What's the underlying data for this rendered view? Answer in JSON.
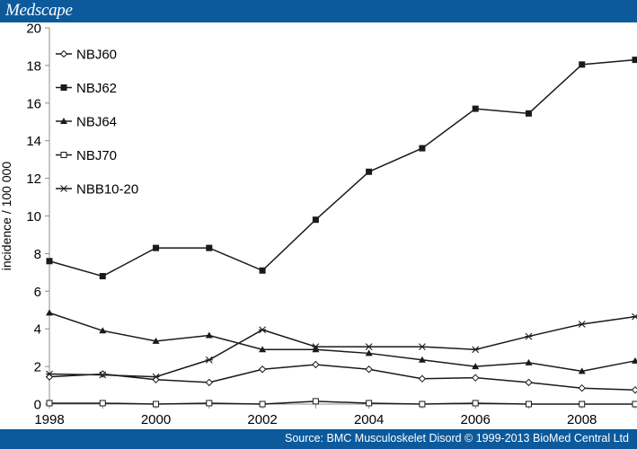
{
  "header": {
    "brand": "Medscape"
  },
  "footer": {
    "source": "Source: BMC Musculoskelet Disord © 1999-2013 BioMed Central Ltd"
  },
  "chart_data": {
    "type": "line",
    "title": "",
    "xlabel": "",
    "ylabel": "incidence / 100 000",
    "xlim": [
      1998,
      2009
    ],
    "ylim": [
      0,
      20
    ],
    "x_ticks": [
      1998,
      2000,
      2002,
      2004,
      2006,
      2008
    ],
    "y_ticks": [
      0,
      2,
      4,
      6,
      8,
      10,
      12,
      14,
      16,
      18,
      20
    ],
    "grid": false,
    "legend": "top-left",
    "x": [
      1998,
      1999,
      2000,
      2001,
      2002,
      2003,
      2004,
      2005,
      2006,
      2007,
      2008,
      2009
    ],
    "series": [
      {
        "name": "NBJ60",
        "marker": "diamond-open",
        "values": [
          1.45,
          1.6,
          1.3,
          1.15,
          1.85,
          2.1,
          1.85,
          1.35,
          1.4,
          1.15,
          0.85,
          0.75
        ]
      },
      {
        "name": "NBJ62",
        "marker": "square-filled",
        "values": [
          7.6,
          6.8,
          8.3,
          8.3,
          7.1,
          9.8,
          12.35,
          13.6,
          15.7,
          15.45,
          18.05,
          18.3
        ]
      },
      {
        "name": "NBJ64",
        "marker": "triangle-filled",
        "values": [
          4.85,
          3.9,
          3.35,
          3.65,
          2.9,
          2.9,
          2.7,
          2.35,
          2.0,
          2.2,
          1.75,
          2.3
        ]
      },
      {
        "name": "NBJ70",
        "marker": "square-open",
        "values": [
          0.05,
          0.05,
          0.0,
          0.05,
          0.0,
          0.15,
          0.05,
          0.0,
          0.05,
          0.0,
          0.0,
          0.0
        ]
      },
      {
        "name": "NBB10-20",
        "marker": "star",
        "values": [
          1.6,
          1.55,
          1.45,
          2.35,
          3.95,
          3.05,
          3.05,
          3.05,
          2.9,
          3.6,
          4.25,
          4.65
        ]
      }
    ]
  }
}
